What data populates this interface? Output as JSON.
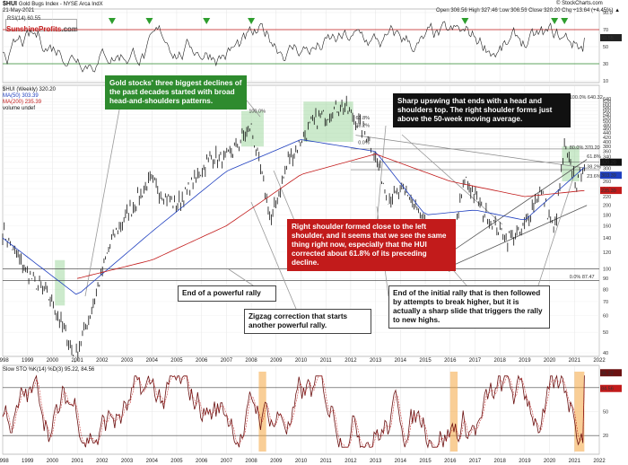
{
  "header": {
    "symbol": "$HUI",
    "name": "Gold Bugs Index - NYSE Arca IndX",
    "date": "21-May-2021",
    "site": "© StockCharts.com",
    "quote": "Open 306.56  High 327.46  Low 306.56  Close 320.20  Chg +13.64 (+4.45%) ▲"
  },
  "brand": {
    "part1": "Sunshine",
    "part2": "Profits",
    "part3": ".com"
  },
  "legend": {
    "rsi": "RSI(14) 60.55",
    "price": "$HUI (Weekly) 320.20",
    "ma50": "MA(50) 303.39",
    "ma200": "MA(200) 235.39",
    "volume": "volume undef",
    "sto": "Slow STO %K(14) %D(3) 95.22, 84.56"
  },
  "annotations": {
    "green": "Gold stocks' three biggest declines of the past decades started with broad head-and-shoulders patterns.",
    "upswing": "Sharp upswing that ends with a head and shoulders top. The right shoulder forms just above the 50-week moving average.",
    "red": "Right shoulder formed close to the left shoulder, and it seems that we see the same thing right now, especially that the HUI corrected about 61.8% of its preceding decline.",
    "end_rally": "End of a powerful rally",
    "zigzag": "Zigzag correction that starts another powerful rally.",
    "initial_rally": "End of the initial rally that is then followed by attempts to break higher, but it is actually a sharp slide that triggers the rally to new highs."
  },
  "fib_labels": [
    "100.0% 640.32",
    "80.0% 370.20",
    "61.8%",
    "38.2%",
    "23.6%",
    "0.0% 87.47",
    "100.0%",
    "61.8%",
    "38.2%",
    "0.0%"
  ],
  "x_ticks": [
    "1998",
    "1999",
    "2000",
    "2001",
    "2002",
    "2003",
    "2004",
    "2005",
    "2006",
    "2007",
    "2008",
    "2009",
    "2010",
    "2011",
    "2012",
    "2013",
    "2014",
    "2015",
    "2016",
    "2017",
    "2018",
    "2019",
    "2020",
    "2021",
    "2022"
  ],
  "price_axis": [
    "640",
    "620",
    "600",
    "580",
    "560",
    "540",
    "520",
    "500",
    "480",
    "460",
    "440",
    "420",
    "400",
    "380",
    "360",
    "340",
    "320",
    "300",
    "280",
    "260",
    "240",
    "220",
    "200",
    "180",
    "160",
    "140",
    "120",
    "100",
    "90",
    "80",
    "70",
    "60",
    "50",
    "40"
  ],
  "rsi_axis": [
    "90.0",
    "70",
    "50",
    "30",
    "10"
  ],
  "sto_axis": [
    "80",
    "50",
    "20"
  ],
  "sto_tags": [
    "84.56",
    "95.22"
  ],
  "rsi_tag": "60.55",
  "price_tags": [
    "320.20",
    "303.39",
    "235.39"
  ],
  "colors": {
    "price": "#111111",
    "ma50": "#1f3fbf",
    "ma200": "#c21b1b",
    "sto_k": "#6b1111",
    "sto_d": "#c21b1b",
    "green_box": "#8fd18f",
    "orange_box": "#f4a640",
    "brand_red": "#c21b1b"
  },
  "chart_data": {
    "type": "line",
    "x_range": [
      1998,
      2022
    ],
    "y_scale": "log",
    "y_range": [
      40,
      640
    ],
    "series": [
      {
        "name": "$HUI (Weekly)",
        "x": [
          1998,
          1999,
          2000,
          2000.9,
          2001.5,
          2002.4,
          2003.9,
          2005,
          2006.4,
          2007,
          2008,
          2008.8,
          2009.5,
          2010.5,
          2011.7,
          2012.7,
          2013.5,
          2014.3,
          2015.2,
          2015.9,
          2016.6,
          2017.3,
          2018.3,
          2018.9,
          2019.6,
          2020.2,
          2020.6,
          2021.1,
          2021.4
        ],
        "values": [
          150,
          95,
          70,
          38,
          60,
          140,
          260,
          200,
          340,
          330,
          470,
          170,
          330,
          500,
          600,
          430,
          220,
          230,
          140,
          100,
          270,
          190,
          140,
          150,
          240,
          150,
          370,
          250,
          320
        ]
      },
      {
        "name": "MA(50)",
        "x": [
          1998,
          2001,
          2004,
          2007,
          2010,
          2013,
          2015,
          2017,
          2019,
          2021.4
        ],
        "values": [
          140,
          75,
          150,
          290,
          410,
          360,
          180,
          190,
          170,
          303
        ]
      },
      {
        "name": "MA(200)",
        "x": [
          2001,
          2004,
          2007,
          2010,
          2013,
          2016,
          2019,
          2021.4
        ],
        "values": [
          90,
          110,
          160,
          280,
          350,
          260,
          220,
          235
        ]
      }
    ],
    "fibonacci": [
      {
        "label": "100.0% 640.32",
        "level": 640.32
      },
      {
        "label": "80.0% 370.20",
        "level": 370.2
      },
      {
        "label": "0.0% 87.47",
        "level": 87.47
      }
    ],
    "rsi": {
      "name": "RSI(14)",
      "last": 60.55,
      "range": [
        10,
        90
      ]
    },
    "sto": {
      "name": "Slow STO %K(14) %D(3)",
      "k": 95.22,
      "d": 84.56,
      "range": [
        0,
        100
      ]
    }
  }
}
